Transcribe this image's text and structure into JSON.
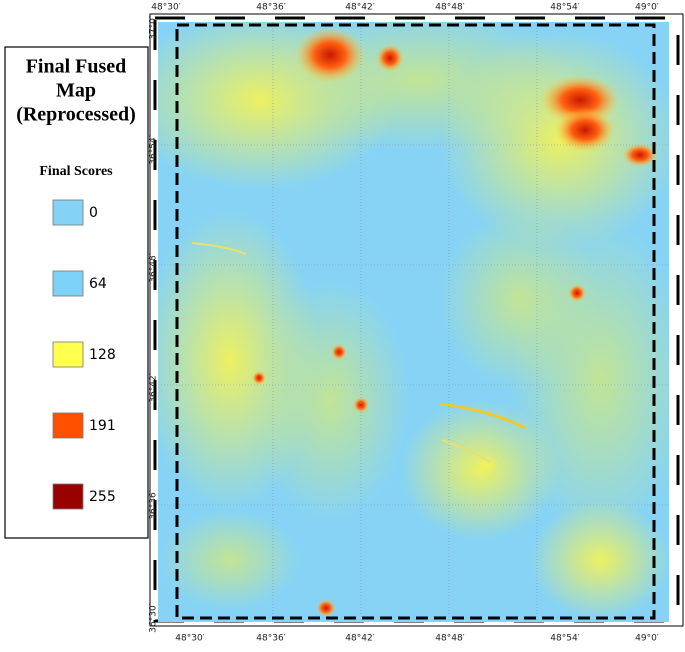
{
  "legend": {
    "title_lines": [
      "Final Fused",
      "Map",
      "(Reprocessed)"
    ],
    "subtitle": "Final Scores",
    "items": [
      {
        "label": 0,
        "color": "#84d2f6"
      },
      {
        "label": 64,
        "color": "#7dd3f7"
      },
      {
        "label": 128,
        "color": "#ffff4d"
      },
      {
        "label": 191,
        "color": "#ff5000"
      },
      {
        "label": 255,
        "color": "#990000"
      }
    ]
  },
  "map": {
    "x_labels": [
      "48°30′",
      "48°36′",
      "48°42′",
      "48°48′",
      "48°54′",
      "49°0′"
    ],
    "y_labels": [
      "37°0′",
      "36°54′",
      "36°48′",
      "36°42′",
      "36°36′",
      "36°30′"
    ]
  }
}
